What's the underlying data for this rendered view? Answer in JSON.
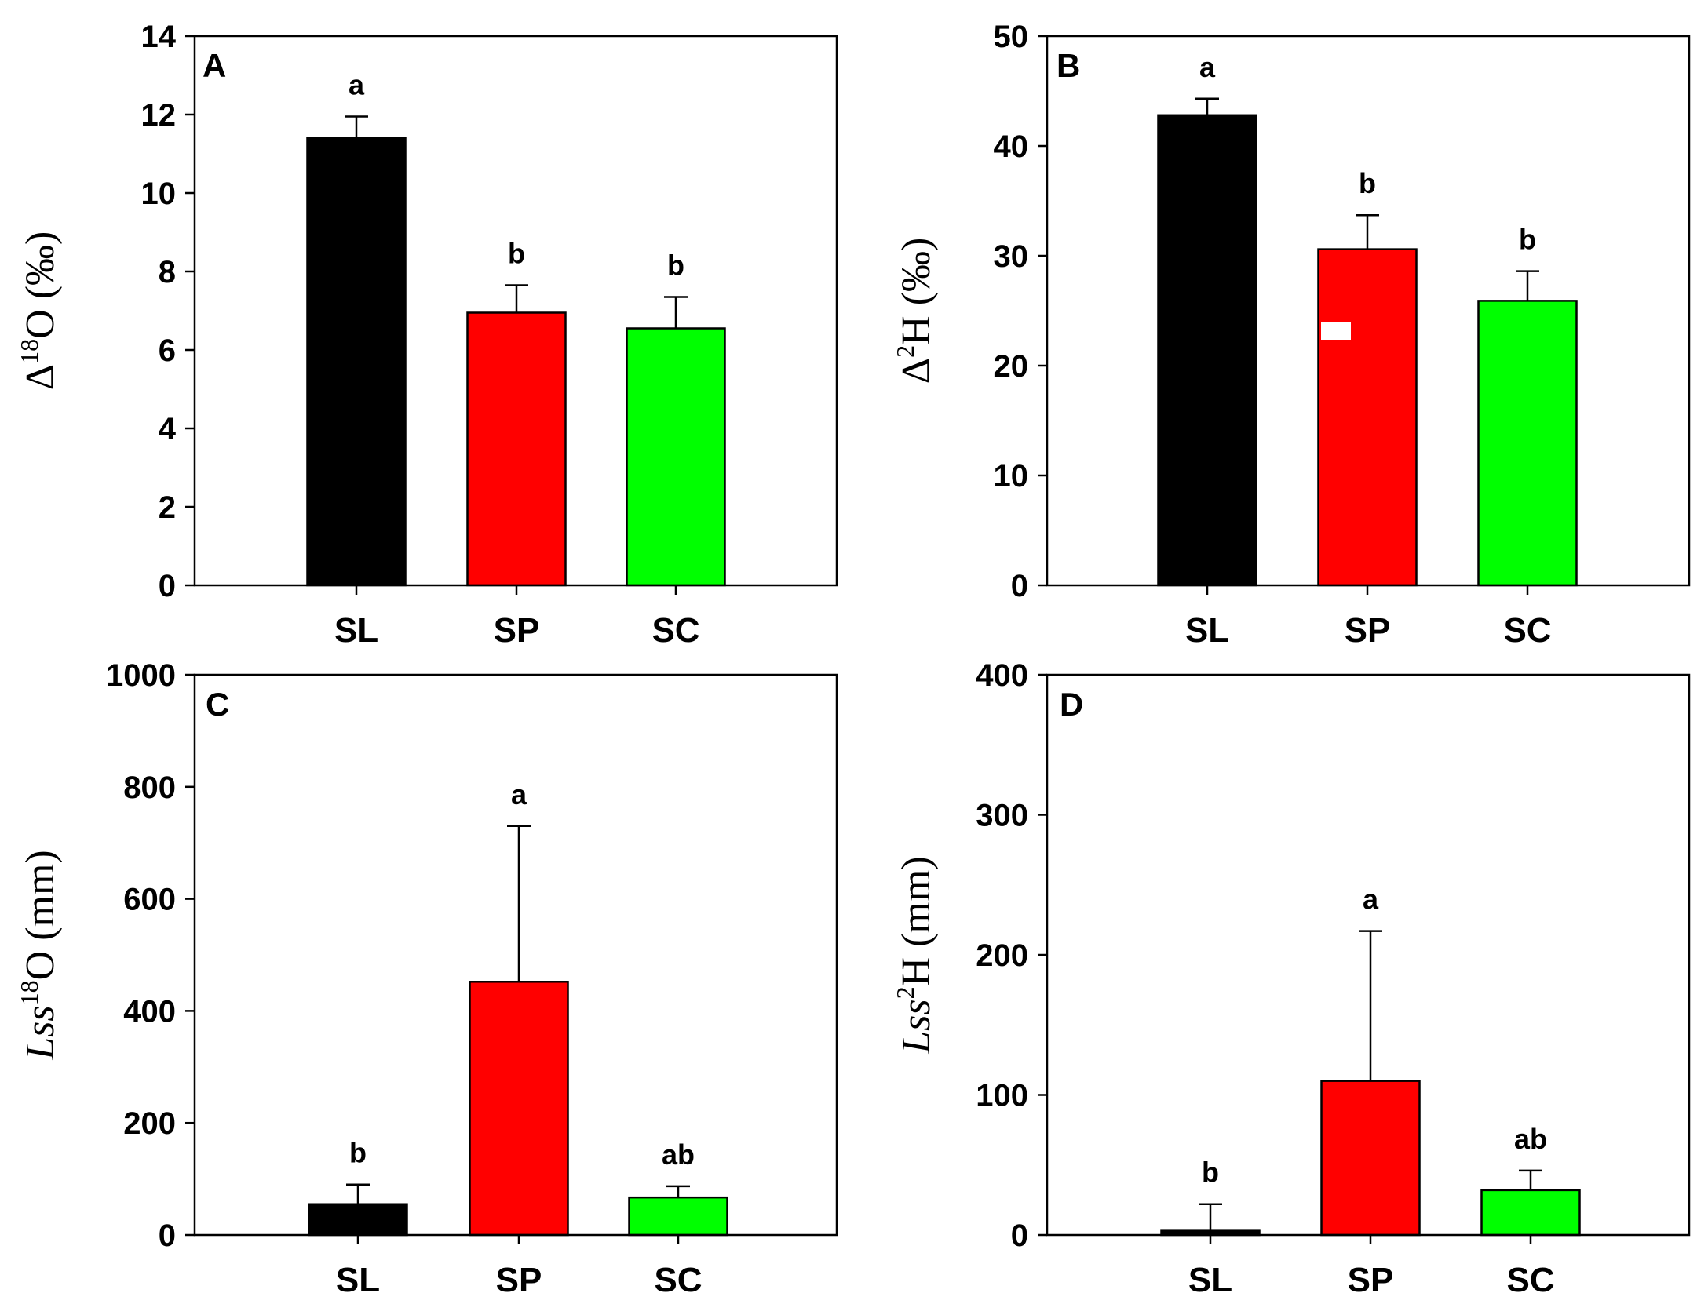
{
  "chart_data": [
    {
      "type": "bar",
      "panel": "A",
      "categories": [
        "SL",
        "SP",
        "SC"
      ],
      "values": [
        11.4,
        6.95,
        6.55
      ],
      "errors": [
        0.55,
        0.7,
        0.8
      ],
      "significance": [
        "a",
        "b",
        "b"
      ],
      "colors": [
        "#000000",
        "#ff0000",
        "#00ff00"
      ],
      "ylim": [
        0,
        14
      ],
      "yticks": [
        0,
        2,
        4,
        6,
        8,
        10,
        12,
        14
      ],
      "ylabel": {
        "prefix": "Δ",
        "sup": "18",
        "main": "O (‰)"
      }
    },
    {
      "type": "bar",
      "panel": "B",
      "categories": [
        "SL",
        "SP",
        "SC"
      ],
      "values": [
        42.8,
        30.6,
        25.9
      ],
      "errors": [
        1.5,
        3.1,
        2.7
      ],
      "significance": [
        "a",
        "b",
        "b"
      ],
      "colors": [
        "#000000",
        "#ff0000",
        "#00ff00"
      ],
      "ylim": [
        0,
        50
      ],
      "yticks": [
        0,
        10,
        20,
        30,
        40,
        50
      ],
      "ylabel": {
        "prefix": "Δ",
        "sup": "2",
        "main": "H (‰)"
      }
    },
    {
      "type": "bar",
      "panel": "C",
      "categories": [
        "SL",
        "SP",
        "SC"
      ],
      "values": [
        55,
        452,
        67
      ],
      "errors": [
        35,
        278,
        20
      ],
      "significance": [
        "b",
        "a",
        "ab"
      ],
      "colors": [
        "#000000",
        "#ff0000",
        "#00ff00"
      ],
      "ylim": [
        0,
        1000
      ],
      "yticks": [
        0,
        200,
        400,
        600,
        800,
        1000
      ],
      "ylabel": {
        "prefix": "Lss",
        "sup": "18",
        "main": "O (mm)"
      }
    },
    {
      "type": "bar",
      "panel": "D",
      "categories": [
        "SL",
        "SP",
        "SC"
      ],
      "values": [
        3,
        110,
        32
      ],
      "errors": [
        19,
        107,
        14
      ],
      "significance": [
        "b",
        "a",
        "ab"
      ],
      "colors": [
        "#000000",
        "#ff0000",
        "#00ff00"
      ],
      "ylim": [
        0,
        400
      ],
      "yticks": [
        0,
        100,
        200,
        300,
        400
      ],
      "ylabel": {
        "prefix": "Lss",
        "sup": "2",
        "main": "H (mm)"
      }
    }
  ]
}
